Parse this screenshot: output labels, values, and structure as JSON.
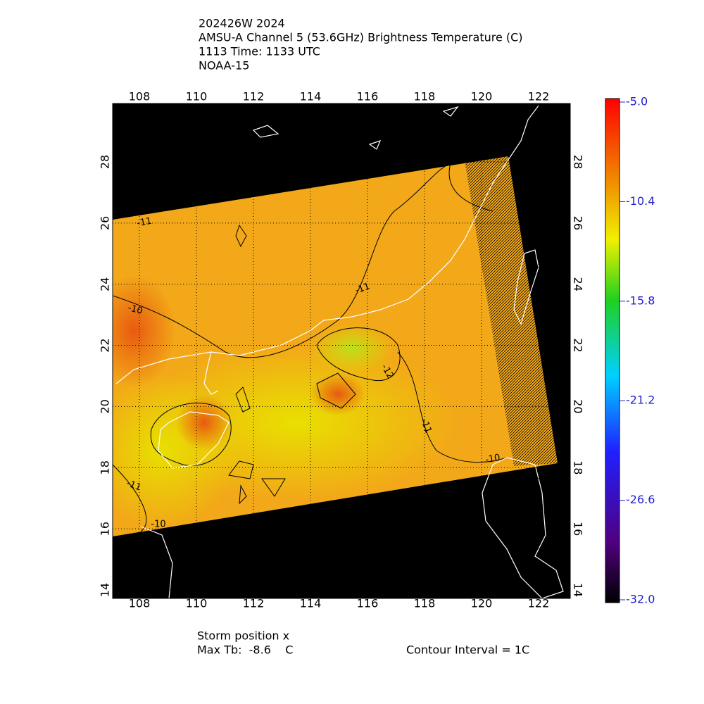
{
  "header": {
    "lines": [
      "202426W 2024",
      "AMSU-A Channel 5 (53.6GHz) Brightness Temperature (C)",
      "1113 Time: 1133 UTC",
      "NOAA-15"
    ]
  },
  "map": {
    "lon_ticks": [
      108,
      110,
      112,
      114,
      116,
      118,
      120,
      122
    ],
    "lat_ticks": [
      14,
      16,
      18,
      20,
      22,
      24,
      26,
      28
    ],
    "contour_labels": [
      "-11",
      "-10",
      "-11",
      "-12",
      "-11",
      "-10",
      "-11",
      "-10"
    ]
  },
  "colorbar": {
    "ticks": [
      {
        "value": -5,
        "label": "-5.0"
      },
      {
        "value": -10.4,
        "label": "-10.4"
      },
      {
        "value": -15.8,
        "label": "-15.8"
      },
      {
        "value": -21.2,
        "label": "-21.2"
      },
      {
        "value": -26.6,
        "label": "-26.6"
      },
      {
        "value": -32,
        "label": "-32.0"
      }
    ]
  },
  "footer": {
    "storm": "Storm position x",
    "max_tb": "Max Tb:  -8.6    C",
    "contour_interval": "Contour Interval = 1C"
  }
}
